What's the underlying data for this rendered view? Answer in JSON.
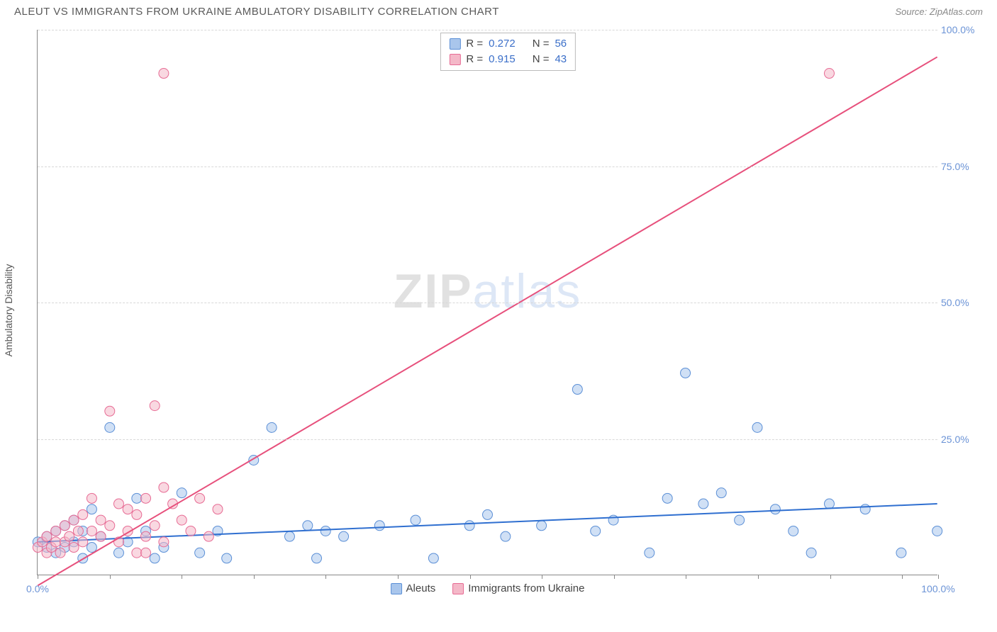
{
  "title": "ALEUT VS IMMIGRANTS FROM UKRAINE AMBULATORY DISABILITY CORRELATION CHART",
  "source": "Source: ZipAtlas.com",
  "watermark": {
    "a": "ZIP",
    "b": "atlas"
  },
  "ylabel": "Ambulatory Disability",
  "chart": {
    "type": "scatter",
    "xlim": [
      0,
      100
    ],
    "ylim": [
      0,
      100
    ],
    "xtick_positions": [
      0,
      8,
      16,
      24,
      32,
      40,
      48,
      56,
      64,
      72,
      80,
      88,
      96,
      100
    ],
    "xtick_labels_start": "0.0%",
    "xtick_labels_end": "100.0%",
    "ytick_positions": [
      25,
      50,
      75,
      100
    ],
    "ytick_labels": [
      "25.0%",
      "50.0%",
      "75.0%",
      "100.0%"
    ],
    "background_color": "#ffffff",
    "grid_color": "#d8d8d8",
    "marker_radius": 7,
    "marker_opacity": 0.55,
    "series": [
      {
        "name": "Aleuts",
        "color_fill": "#a9c6ec",
        "color_stroke": "#5b8fd6",
        "R": "0.272",
        "N": "56",
        "trend": {
          "x1": 0,
          "y1": 6.0,
          "x2": 100,
          "y2": 13.0,
          "color": "#2f6fd0",
          "width": 2
        },
        "points": [
          [
            0,
            6
          ],
          [
            1,
            7
          ],
          [
            1,
            5
          ],
          [
            2,
            8
          ],
          [
            2,
            4
          ],
          [
            3,
            5
          ],
          [
            3,
            9
          ],
          [
            4,
            10
          ],
          [
            4,
            6
          ],
          [
            5,
            3
          ],
          [
            5,
            8
          ],
          [
            6,
            12
          ],
          [
            6,
            5
          ],
          [
            7,
            7
          ],
          [
            8,
            27
          ],
          [
            9,
            4
          ],
          [
            10,
            6
          ],
          [
            11,
            14
          ],
          [
            12,
            8
          ],
          [
            13,
            3
          ],
          [
            14,
            5
          ],
          [
            16,
            15
          ],
          [
            18,
            4
          ],
          [
            20,
            8
          ],
          [
            21,
            3
          ],
          [
            24,
            21
          ],
          [
            26,
            27
          ],
          [
            28,
            7
          ],
          [
            30,
            9
          ],
          [
            31,
            3
          ],
          [
            32,
            8
          ],
          [
            34,
            7
          ],
          [
            38,
            9
          ],
          [
            42,
            10
          ],
          [
            44,
            3
          ],
          [
            48,
            9
          ],
          [
            50,
            11
          ],
          [
            52,
            7
          ],
          [
            56,
            9
          ],
          [
            60,
            34
          ],
          [
            62,
            8
          ],
          [
            64,
            10
          ],
          [
            68,
            4
          ],
          [
            70,
            14
          ],
          [
            72,
            37
          ],
          [
            74,
            13
          ],
          [
            76,
            15
          ],
          [
            78,
            10
          ],
          [
            80,
            27
          ],
          [
            82,
            12
          ],
          [
            84,
            8
          ],
          [
            86,
            4
          ],
          [
            88,
            13
          ],
          [
            92,
            12
          ],
          [
            96,
            4
          ],
          [
            100,
            8
          ]
        ]
      },
      {
        "name": "Immigrants from Ukraine",
        "color_fill": "#f4b8c8",
        "color_stroke": "#e76b94",
        "R": "0.915",
        "N": "43",
        "trend": {
          "x1": 0,
          "y1": -2,
          "x2": 100,
          "y2": 95,
          "color": "#e7507c",
          "width": 2
        },
        "points": [
          [
            0,
            5
          ],
          [
            0.5,
            6
          ],
          [
            1,
            4
          ],
          [
            1,
            7
          ],
          [
            1.5,
            5
          ],
          [
            2,
            8
          ],
          [
            2,
            6
          ],
          [
            2.5,
            4
          ],
          [
            3,
            9
          ],
          [
            3,
            6
          ],
          [
            3.5,
            7
          ],
          [
            4,
            10
          ],
          [
            4,
            5
          ],
          [
            4.5,
            8
          ],
          [
            5,
            6
          ],
          [
            5,
            11
          ],
          [
            6,
            8
          ],
          [
            6,
            14
          ],
          [
            7,
            7
          ],
          [
            7,
            10
          ],
          [
            8,
            30
          ],
          [
            8,
            9
          ],
          [
            9,
            13
          ],
          [
            9,
            6
          ],
          [
            10,
            8
          ],
          [
            10,
            12
          ],
          [
            11,
            11
          ],
          [
            11,
            4
          ],
          [
            12,
            14
          ],
          [
            12,
            7
          ],
          [
            13,
            9
          ],
          [
            14,
            16
          ],
          [
            14,
            6
          ],
          [
            15,
            13
          ],
          [
            16,
            10
          ],
          [
            17,
            8
          ],
          [
            18,
            14
          ],
          [
            19,
            7
          ],
          [
            20,
            12
          ],
          [
            13,
            31
          ],
          [
            14,
            92
          ],
          [
            88,
            92
          ],
          [
            12,
            4
          ]
        ]
      }
    ]
  },
  "colors": {
    "title": "#5a5a5a",
    "tick_text": "#6b93d6"
  },
  "legend_labels": {
    "R": "R =",
    "N": "N ="
  }
}
